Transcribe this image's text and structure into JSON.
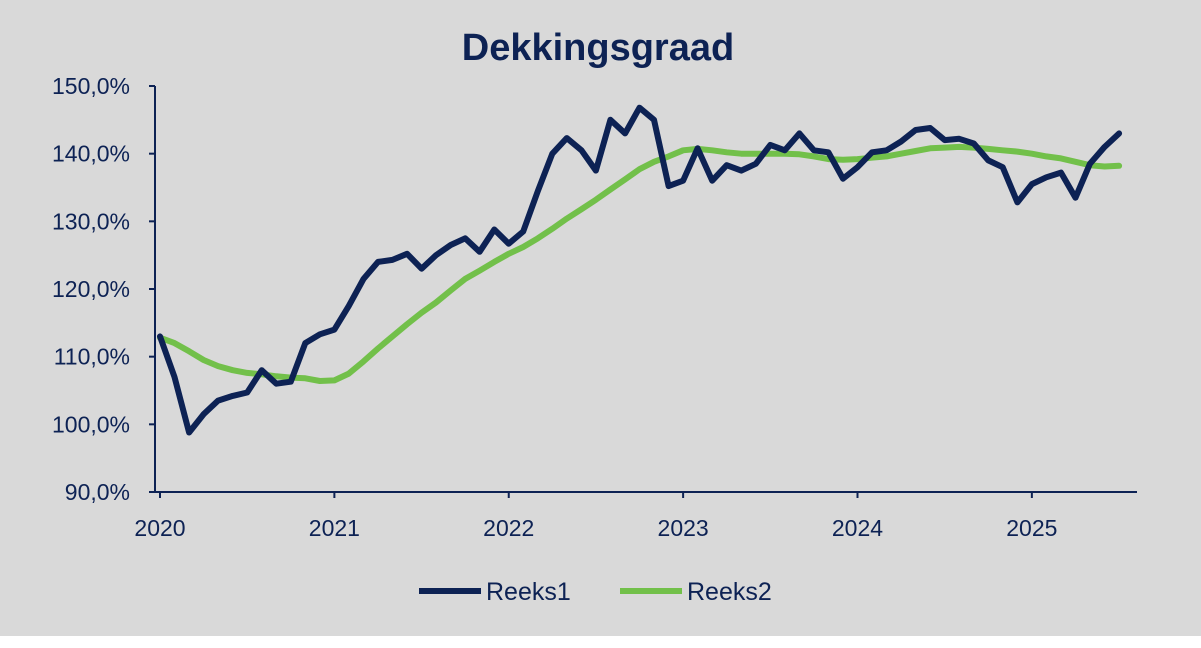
{
  "chart_data": {
    "type": "line",
    "title": "Dekkingsgraad",
    "xlabel": "",
    "ylabel": "",
    "ylim": [
      90,
      150
    ],
    "yticks": [
      90,
      100,
      110,
      120,
      130,
      140,
      150
    ],
    "ytick_labels": [
      "90,0%",
      "100,0%",
      "110,0%",
      "120,0%",
      "130,0%",
      "140,0%",
      "150,0%"
    ],
    "xlim": [
      2020.0,
      2025.58
    ],
    "xticks": [
      2020,
      2021,
      2022,
      2023,
      2024,
      2025
    ],
    "xtick_labels": [
      "2020",
      "2021",
      "2022",
      "2023",
      "2024",
      "2025"
    ],
    "legend_position": "bottom",
    "grid": false,
    "series": [
      {
        "name": "Reeks1",
        "color": "#0d2254",
        "x": [
          2020.0,
          2020.083,
          2020.167,
          2020.25,
          2020.333,
          2020.417,
          2020.5,
          2020.583,
          2020.667,
          2020.75,
          2020.833,
          2020.917,
          2021.0,
          2021.083,
          2021.167,
          2021.25,
          2021.333,
          2021.417,
          2021.5,
          2021.583,
          2021.667,
          2021.75,
          2021.833,
          2021.917,
          2022.0,
          2022.083,
          2022.167,
          2022.25,
          2022.333,
          2022.417,
          2022.5,
          2022.583,
          2022.667,
          2022.75,
          2022.833,
          2022.917,
          2023.0,
          2023.083,
          2023.167,
          2023.25,
          2023.333,
          2023.417,
          2023.5,
          2023.583,
          2023.667,
          2023.75,
          2023.833,
          2023.917,
          2024.0,
          2024.083,
          2024.167,
          2024.25,
          2024.333,
          2024.417,
          2024.5,
          2024.583,
          2024.667,
          2024.75,
          2024.833,
          2024.917,
          2025.0,
          2025.083,
          2025.167,
          2025.25,
          2025.333,
          2025.417,
          2025.5
        ],
        "values": [
          113.0,
          107.0,
          98.8,
          101.5,
          103.5,
          104.2,
          104.7,
          108.0,
          106.0,
          106.3,
          112.0,
          113.3,
          114.0,
          117.5,
          121.5,
          124.0,
          124.3,
          125.2,
          123.0,
          125.0,
          126.5,
          127.5,
          125.5,
          128.8,
          126.7,
          128.5,
          134.5,
          140.0,
          142.3,
          140.5,
          137.5,
          145.0,
          143.0,
          146.8,
          145.0,
          135.2,
          136.0,
          140.8,
          136.0,
          138.3,
          137.5,
          138.5,
          141.3,
          140.5,
          143.0,
          140.5,
          140.2,
          136.3,
          138.0,
          140.2,
          140.5,
          141.8,
          143.5,
          143.8,
          142.0,
          142.2,
          141.5,
          139.0,
          138.0,
          132.8,
          135.5,
          136.5,
          137.2,
          133.5,
          138.5,
          141.0,
          143.0
        ]
      },
      {
        "name": "Reeks2",
        "color": "#72c04a",
        "x": [
          2020.0,
          2020.083,
          2020.167,
          2020.25,
          2020.333,
          2020.417,
          2020.5,
          2020.583,
          2020.667,
          2020.75,
          2020.833,
          2020.917,
          2021.0,
          2021.083,
          2021.167,
          2021.25,
          2021.333,
          2021.417,
          2021.5,
          2021.583,
          2021.667,
          2021.75,
          2021.833,
          2021.917,
          2022.0,
          2022.083,
          2022.167,
          2022.25,
          2022.333,
          2022.417,
          2022.5,
          2022.583,
          2022.667,
          2022.75,
          2022.833,
          2022.917,
          2023.0,
          2023.083,
          2023.167,
          2023.25,
          2023.333,
          2023.417,
          2023.5,
          2023.583,
          2023.667,
          2023.75,
          2023.833,
          2023.917,
          2024.0,
          2024.083,
          2024.167,
          2024.25,
          2024.333,
          2024.417,
          2024.5,
          2024.583,
          2024.667,
          2024.75,
          2024.833,
          2024.917,
          2025.0,
          2025.083,
          2025.167,
          2025.25,
          2025.333,
          2025.417,
          2025.5
        ],
        "values": [
          112.8,
          112.0,
          110.8,
          109.5,
          108.6,
          108.0,
          107.6,
          107.4,
          107.1,
          106.9,
          106.8,
          106.4,
          106.5,
          107.5,
          109.3,
          111.2,
          113.0,
          114.8,
          116.5,
          118.0,
          119.8,
          121.5,
          122.7,
          124.0,
          125.2,
          126.2,
          127.5,
          128.9,
          130.4,
          131.8,
          133.2,
          134.7,
          136.2,
          137.7,
          138.8,
          139.6,
          140.5,
          140.7,
          140.5,
          140.2,
          140.0,
          140.0,
          140.0,
          140.0,
          139.9,
          139.6,
          139.2,
          139.1,
          139.2,
          139.4,
          139.6,
          140.0,
          140.4,
          140.8,
          140.9,
          141.0,
          140.9,
          140.7,
          140.5,
          140.3,
          140.0,
          139.6,
          139.3,
          138.8,
          138.3,
          138.1,
          138.2
        ]
      }
    ]
  }
}
